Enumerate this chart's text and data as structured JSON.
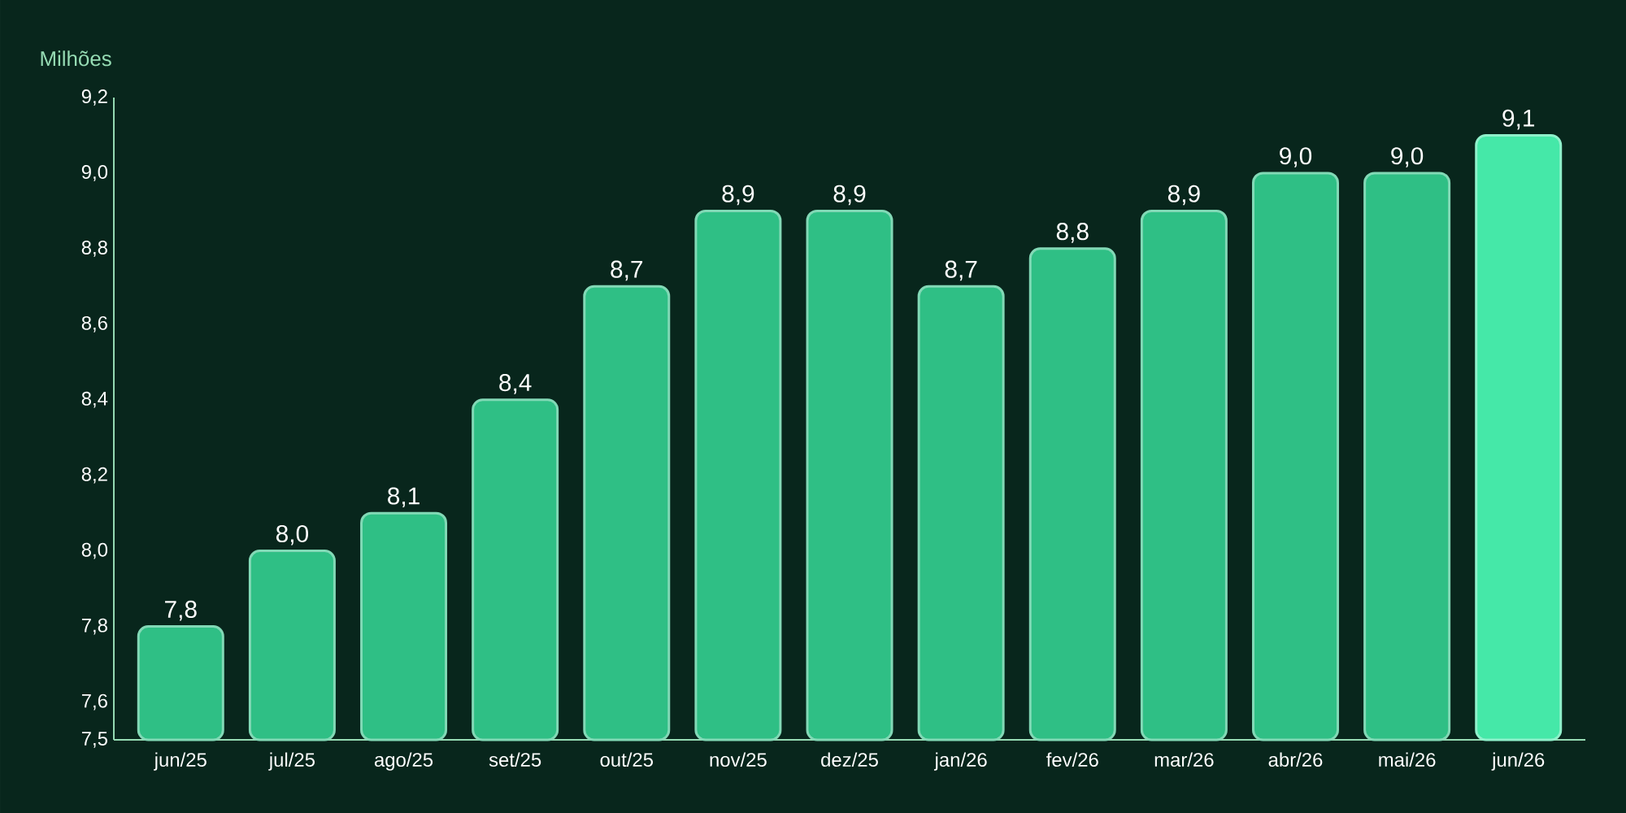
{
  "chart_data": {
    "type": "bar",
    "ylabel": "Milhões",
    "categories": [
      "jun/25",
      "jul/25",
      "ago/25",
      "set/25",
      "out/25",
      "nov/25",
      "dez/25",
      "jan/26",
      "fev/26",
      "mar/26",
      "abr/26",
      "mai/26",
      "jun/26"
    ],
    "values": [
      7.8,
      8.0,
      8.1,
      8.4,
      8.7,
      8.9,
      8.9,
      8.7,
      8.8,
      8.9,
      9.0,
      9.0,
      9.1
    ],
    "value_labels": [
      "7,8",
      "8,0",
      "8,1",
      "8,4",
      "8,7",
      "8,9",
      "8,9",
      "8,7",
      "8,8",
      "8,9",
      "9,0",
      "9,0",
      "9,1"
    ],
    "colors": [
      "#2fbf85",
      "#2fbf85",
      "#2fbf85",
      "#2fbf85",
      "#2fbf85",
      "#2fbf85",
      "#2fbf85",
      "#2fbf85",
      "#2fbf85",
      "#2fbf85",
      "#2fbf85",
      "#2fbf85",
      "#45e8a8"
    ],
    "ylim": [
      7.5,
      9.2
    ],
    "yticks": [
      {
        "value": 7.5,
        "label": "7,5"
      },
      {
        "value": 7.6,
        "label": "7,6"
      },
      {
        "value": 7.8,
        "label": "7,8"
      },
      {
        "value": 8.0,
        "label": "8,0"
      },
      {
        "value": 8.2,
        "label": "8,2"
      },
      {
        "value": 8.4,
        "label": "8,4"
      },
      {
        "value": 8.6,
        "label": "8,6"
      },
      {
        "value": 8.8,
        "label": "8,8"
      },
      {
        "value": 9.0,
        "label": "9,0"
      },
      {
        "value": 9.2,
        "label": "9,2"
      }
    ],
    "grid": false
  }
}
